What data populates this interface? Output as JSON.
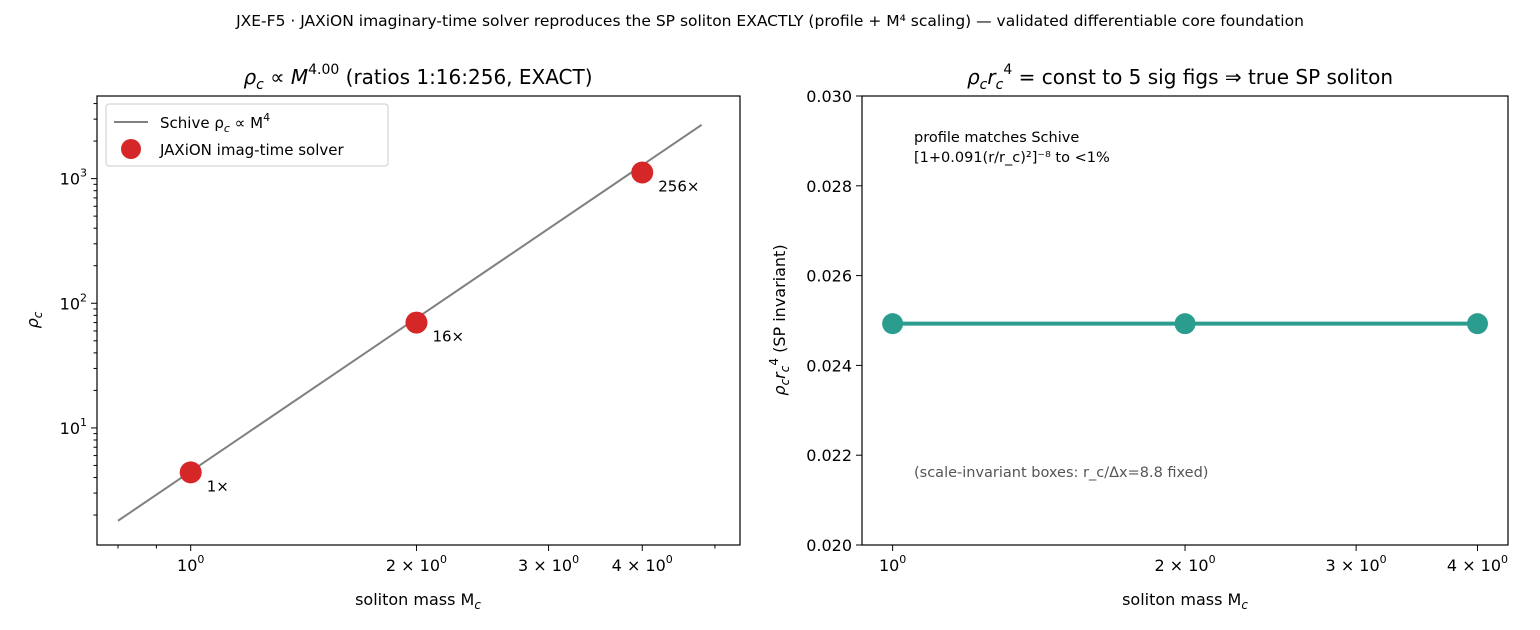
{
  "suptitle": "JXE-F5 · JAXiON imaginary-time solver reproduces the SP soliton EXACTLY (profile + M⁴ scaling) — validated differentiable core foundation",
  "colors": {
    "line": "#808080",
    "marker_red": "#d62728",
    "teal": "#2a9d8f",
    "axis": "#000000",
    "annotation_gray": "#555555"
  },
  "chart_data": [
    {
      "type": "line",
      "title_prefix": "ρ",
      "title_sub": "c",
      "title_mid": " ∝ M",
      "title_sup": "4.00",
      "title_suffix": " (ratios 1:16:256, EXACT)",
      "xlabel_text": "soliton mass M",
      "xlabel_sub": "c",
      "ylabel_text": "ρ",
      "ylabel_sub": "c",
      "xscale": "log",
      "yscale": "log",
      "xlim": [
        0.75,
        5.4
      ],
      "ylim": [
        1.15,
        4600
      ],
      "x_ticks": [
        {
          "value": 1,
          "base": "10",
          "exp": "0"
        },
        {
          "value": 2,
          "base": "2 × 10",
          "exp": "0"
        },
        {
          "value": 3,
          "base": "3 × 10",
          "exp": "0"
        },
        {
          "value": 4,
          "base": "4 × 10",
          "exp": "0"
        }
      ],
      "y_ticks": [
        {
          "value": 10,
          "base": "10",
          "exp": "1"
        },
        {
          "value": 100,
          "base": "10",
          "exp": "2"
        },
        {
          "value": 1000,
          "base": "10",
          "exp": "3"
        }
      ],
      "legend": {
        "placement": "upper-left",
        "entry1_pre": "Schive ρ",
        "entry1_sub": "c",
        "entry1_mid": " ∝ M",
        "entry1_sup": "4",
        "entry2": "JAXiON imag-time solver"
      },
      "series": [
        {
          "kind": "line",
          "x": [
            0.8,
            4.8
          ],
          "y": [
            1.8,
            2700
          ]
        },
        {
          "kind": "markers",
          "x": [
            1,
            2,
            4
          ],
          "y": [
            4.4,
            70,
            1120
          ],
          "labels": [
            "1×",
            "16×",
            "256×"
          ]
        }
      ]
    },
    {
      "type": "line",
      "title_pre": "ρ",
      "title_sub1": "c",
      "title_r": "r",
      "title_sub2": "c",
      "title_sup": "4",
      "title_rest": " =  const to 5 sig figs ⇒ true SP soliton",
      "xlabel_text": "soliton mass M",
      "xlabel_sub": "c",
      "ylabel_pre": "ρ",
      "ylabel_sub1": "c",
      "ylabel_r": "r",
      "ylabel_sub2": "c",
      "ylabel_sup": "4",
      "ylabel_rest": " (SP invariant)",
      "xscale": "log",
      "yscale": "linear",
      "xlim": [
        0.93,
        4.3
      ],
      "ylim": [
        0.02,
        0.03
      ],
      "x_ticks": [
        {
          "value": 1,
          "base": "10",
          "exp": "0"
        },
        {
          "value": 2,
          "base": "2 × 10",
          "exp": "0"
        },
        {
          "value": 3,
          "base": "3 × 10",
          "exp": "0"
        },
        {
          "value": 4,
          "base": "4 × 10",
          "exp": "0"
        }
      ],
      "y_ticks": [
        "0.020",
        "0.022",
        "0.024",
        "0.026",
        "0.028",
        "0.030"
      ],
      "series": [
        {
          "x": [
            1,
            2,
            4
          ],
          "y": [
            0.02493,
            0.02493,
            0.02493
          ]
        }
      ],
      "annotation_1": "profile matches Schive",
      "annotation_2": "[1+0.091(r/r_c)²]⁻⁸ to <1%",
      "annotation_3": "(scale-invariant boxes: r_c/Δx=8.8 fixed)"
    }
  ]
}
